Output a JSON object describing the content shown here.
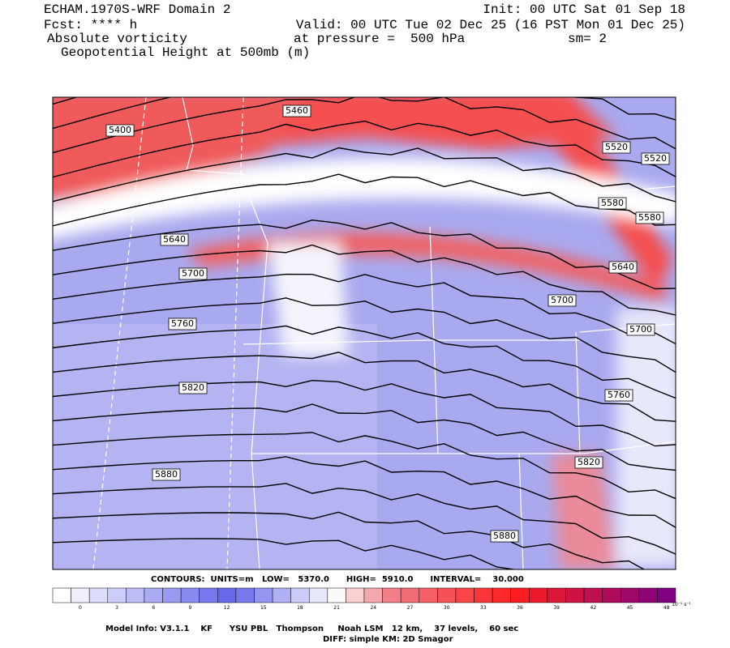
{
  "header": {
    "title": "ECHAM.1970S-WRF Domain 2",
    "init": "Init: 00 UTC Sat 01 Sep 18",
    "fcst": "Fcst: **** h",
    "valid": "Valid: 00 UTC Tue 02 Dec 25 (16 PST Mon 01 Dec 25)",
    "field1": "Absolute vorticity",
    "pressure": "at pressure =  500 hPa",
    "sm": "sm= 2",
    "field2": "Geopotential Height at 500mb (m)"
  },
  "contours": {
    "labels": [
      "5400",
      "5460",
      "5520",
      "5520",
      "5580",
      "5580",
      "5640",
      "5640",
      "5700",
      "5700",
      "5700",
      "5760",
      "5760",
      "5820",
      "5820",
      "5880",
      "5880"
    ],
    "info": "CONTOURS:  UNITS=m   LOW=   5370.0      HIGH=  5910.0      INTERVAL=    30.000"
  },
  "colorbar": {
    "labels": [
      "0",
      "3",
      "6",
      "9",
      "12",
      "15",
      "18",
      "21",
      "24",
      "27",
      "30",
      "33",
      "36",
      "39",
      "42",
      "45",
      "48"
    ],
    "unit": "10⁻⁵ s⁻¹"
  },
  "footer": {
    "line1": "Model Info: V3.1.1    KF      YSU PBL   Thompson     Noah LSM   12 km,    37 levels,    60 sec",
    "line2": "DIFF: simple KM: 2D Smagor"
  }
}
